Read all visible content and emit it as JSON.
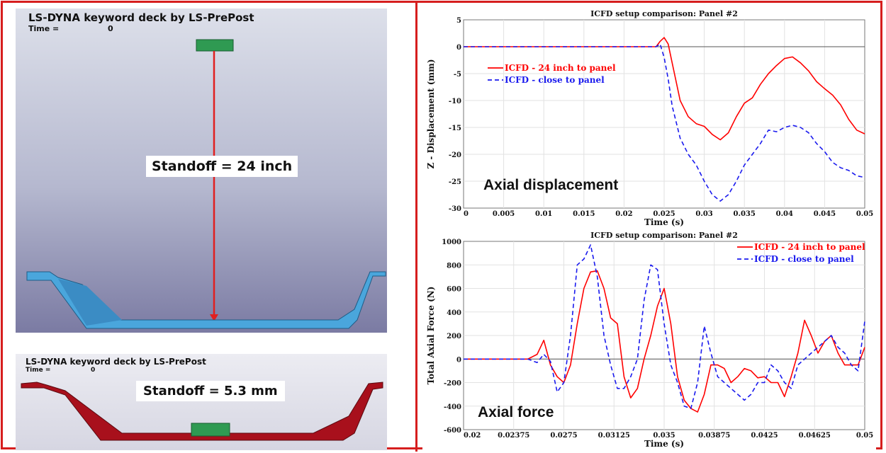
{
  "left": {
    "top_sim": {
      "title": "LS-DYNA keyword deck by LS-PrePost",
      "time_label": "Time =",
      "time_value": "0",
      "standoff": "Standoff = 24 inch"
    },
    "bottom_sim": {
      "title": "LS-DYNA keyword deck by LS-PrePost",
      "time_label": "Time =",
      "time_value": "0",
      "standoff": "Standoff = 5.3 mm"
    }
  },
  "colors": {
    "frame": "#d61e1e",
    "series_red": "#ff0000",
    "series_blue": "#1a1aee",
    "panel_blue": "#4aa6dc",
    "panel_red": "#a8101c",
    "charge_green": "#2f9a52"
  },
  "chart_data": [
    {
      "type": "line",
      "title": "ICFD setup comparison: Panel #2",
      "xlabel": "Time (s)",
      "ylabel": "Z - Displacement (mm)",
      "annotation": "Axial displacement",
      "xlim": [
        0,
        0.05
      ],
      "ylim": [
        -30,
        5
      ],
      "xticks": [
        0,
        0.005,
        0.01,
        0.015,
        0.02,
        0.025,
        0.03,
        0.035,
        0.04,
        0.045,
        0.05
      ],
      "xtick_labels": [
        "0",
        "0.005",
        "0.01",
        "0.015",
        "0.02",
        "0.025",
        "0.03",
        "0.035",
        "0.04",
        "0.045",
        "0.05"
      ],
      "yticks": [
        5,
        0,
        -5,
        -10,
        -15,
        -20,
        -25,
        -30
      ],
      "ytick_labels": [
        "5",
        "0",
        "-5",
        "-10",
        "-15",
        "-20",
        "-25",
        "-30"
      ],
      "grid": true,
      "legend": "upper-left",
      "series": [
        {
          "name": "ICFD - 24 inch to panel",
          "style": "solid",
          "color": "#ff0000",
          "x": [
            0,
            0.024,
            0.0245,
            0.025,
            0.0255,
            0.026,
            0.027,
            0.028,
            0.029,
            0.03,
            0.031,
            0.032,
            0.033,
            0.034,
            0.035,
            0.036,
            0.037,
            0.038,
            0.039,
            0.04,
            0.041,
            0.042,
            0.043,
            0.044,
            0.045,
            0.046,
            0.047,
            0.048,
            0.049,
            0.05
          ],
          "y": [
            0,
            0,
            1.0,
            1.7,
            0.5,
            -3,
            -10,
            -13,
            -14.3,
            -14.8,
            -16.3,
            -17.3,
            -16,
            -13,
            -10.5,
            -9.5,
            -7,
            -5,
            -3.5,
            -2.2,
            -1.9,
            -3,
            -4.5,
            -6.5,
            -7.8,
            -9,
            -10.8,
            -13.5,
            -15.5,
            -16.2
          ]
        },
        {
          "name": "ICFD - close to panel",
          "style": "dashed",
          "color": "#1a1aee",
          "x": [
            0,
            0.024,
            0.0245,
            0.025,
            0.0255,
            0.026,
            0.027,
            0.028,
            0.029,
            0.03,
            0.031,
            0.032,
            0.033,
            0.034,
            0.035,
            0.036,
            0.037,
            0.038,
            0.039,
            0.04,
            0.041,
            0.042,
            0.043,
            0.044,
            0.045,
            0.046,
            0.047,
            0.048,
            0.049,
            0.05
          ],
          "y": [
            0,
            0,
            0.5,
            -2,
            -6,
            -11,
            -17,
            -20,
            -22,
            -25,
            -27.5,
            -28.7,
            -27.5,
            -25,
            -22,
            -20,
            -18,
            -15.5,
            -15.8,
            -15,
            -14.6,
            -15,
            -16,
            -18,
            -19.5,
            -21.5,
            -22.5,
            -23,
            -24,
            -24.3
          ]
        }
      ]
    },
    {
      "type": "line",
      "title": "ICFD setup comparison: Panel #2",
      "xlabel": "Time (s)",
      "ylabel": "Total Axial Force (N)",
      "annotation": "Axial force",
      "xlim": [
        0.02,
        0.05
      ],
      "ylim": [
        -600,
        1000
      ],
      "xticks": [
        0.02,
        0.02375,
        0.0275,
        0.03125,
        0.035,
        0.03875,
        0.0425,
        0.04625,
        0.05
      ],
      "xtick_labels": [
        "0.02",
        "0.02375",
        "0.0275",
        "0.03125",
        "0.035",
        "0.03875",
        "0.0425",
        "0.04625",
        "0.05"
      ],
      "yticks": [
        1000,
        800,
        600,
        400,
        200,
        0,
        -200,
        -400,
        -600
      ],
      "ytick_labels": [
        "1000",
        "800",
        "600",
        "400",
        "200",
        "0",
        "-200",
        "-400",
        "-600"
      ],
      "grid": true,
      "legend": "upper-right",
      "series": [
        {
          "name": "ICFD - 24 inch to panel",
          "style": "solid",
          "color": "#ff0000",
          "x": [
            0.02,
            0.0242,
            0.0248,
            0.0255,
            0.026,
            0.0265,
            0.027,
            0.0275,
            0.028,
            0.0285,
            0.029,
            0.0295,
            0.03,
            0.0305,
            0.031,
            0.0315,
            0.032,
            0.0325,
            0.033,
            0.0335,
            0.034,
            0.0345,
            0.035,
            0.0355,
            0.036,
            0.0365,
            0.037,
            0.0375,
            0.038,
            0.0385,
            0.039,
            0.0395,
            0.04,
            0.0405,
            0.041,
            0.0415,
            0.042,
            0.0425,
            0.043,
            0.0435,
            0.044,
            0.0445,
            0.045,
            0.0455,
            0.046,
            0.0465,
            0.047,
            0.0475,
            0.048,
            0.0485,
            0.049,
            0.0495,
            0.05
          ],
          "y": [
            0,
            0,
            0,
            40,
            160,
            -50,
            -150,
            -200,
            -50,
            300,
            600,
            740,
            750,
            600,
            350,
            300,
            -150,
            -330,
            -250,
            0,
            200,
            450,
            600,
            300,
            -150,
            -350,
            -420,
            -450,
            -300,
            -50,
            -50,
            -80,
            -200,
            -150,
            -80,
            -100,
            -160,
            -150,
            -200,
            -200,
            -320,
            -150,
            50,
            330,
            200,
            50,
            150,
            200,
            50,
            -50,
            -50,
            -50,
            100
          ]
        },
        {
          "name": "ICFD - close to panel",
          "style": "dashed",
          "color": "#1a1aee",
          "x": [
            0.02,
            0.0242,
            0.0248,
            0.0255,
            0.026,
            0.0265,
            0.027,
            0.0275,
            0.028,
            0.0285,
            0.029,
            0.0295,
            0.03,
            0.0305,
            0.031,
            0.0315,
            0.032,
            0.0325,
            0.033,
            0.0335,
            0.034,
            0.0345,
            0.035,
            0.0355,
            0.036,
            0.0365,
            0.037,
            0.0375,
            0.038,
            0.0385,
            0.039,
            0.0395,
            0.04,
            0.0405,
            0.041,
            0.0415,
            0.042,
            0.0425,
            0.043,
            0.0435,
            0.044,
            0.0445,
            0.045,
            0.0455,
            0.046,
            0.0465,
            0.047,
            0.0475,
            0.048,
            0.0485,
            0.049,
            0.0495,
            0.05
          ],
          "y": [
            0,
            0,
            0,
            -30,
            40,
            -20,
            -280,
            -200,
            200,
            800,
            850,
            970,
            700,
            200,
            -50,
            -250,
            -250,
            -150,
            0,
            500,
            800,
            760,
            300,
            -50,
            -200,
            -400,
            -420,
            -200,
            280,
            50,
            -150,
            -200,
            -250,
            -300,
            -350,
            -300,
            -200,
            -200,
            -50,
            -100,
            -200,
            -250,
            -50,
            0,
            50,
            100,
            150,
            200,
            100,
            50,
            -50,
            -100,
            320
          ]
        }
      ]
    }
  ]
}
